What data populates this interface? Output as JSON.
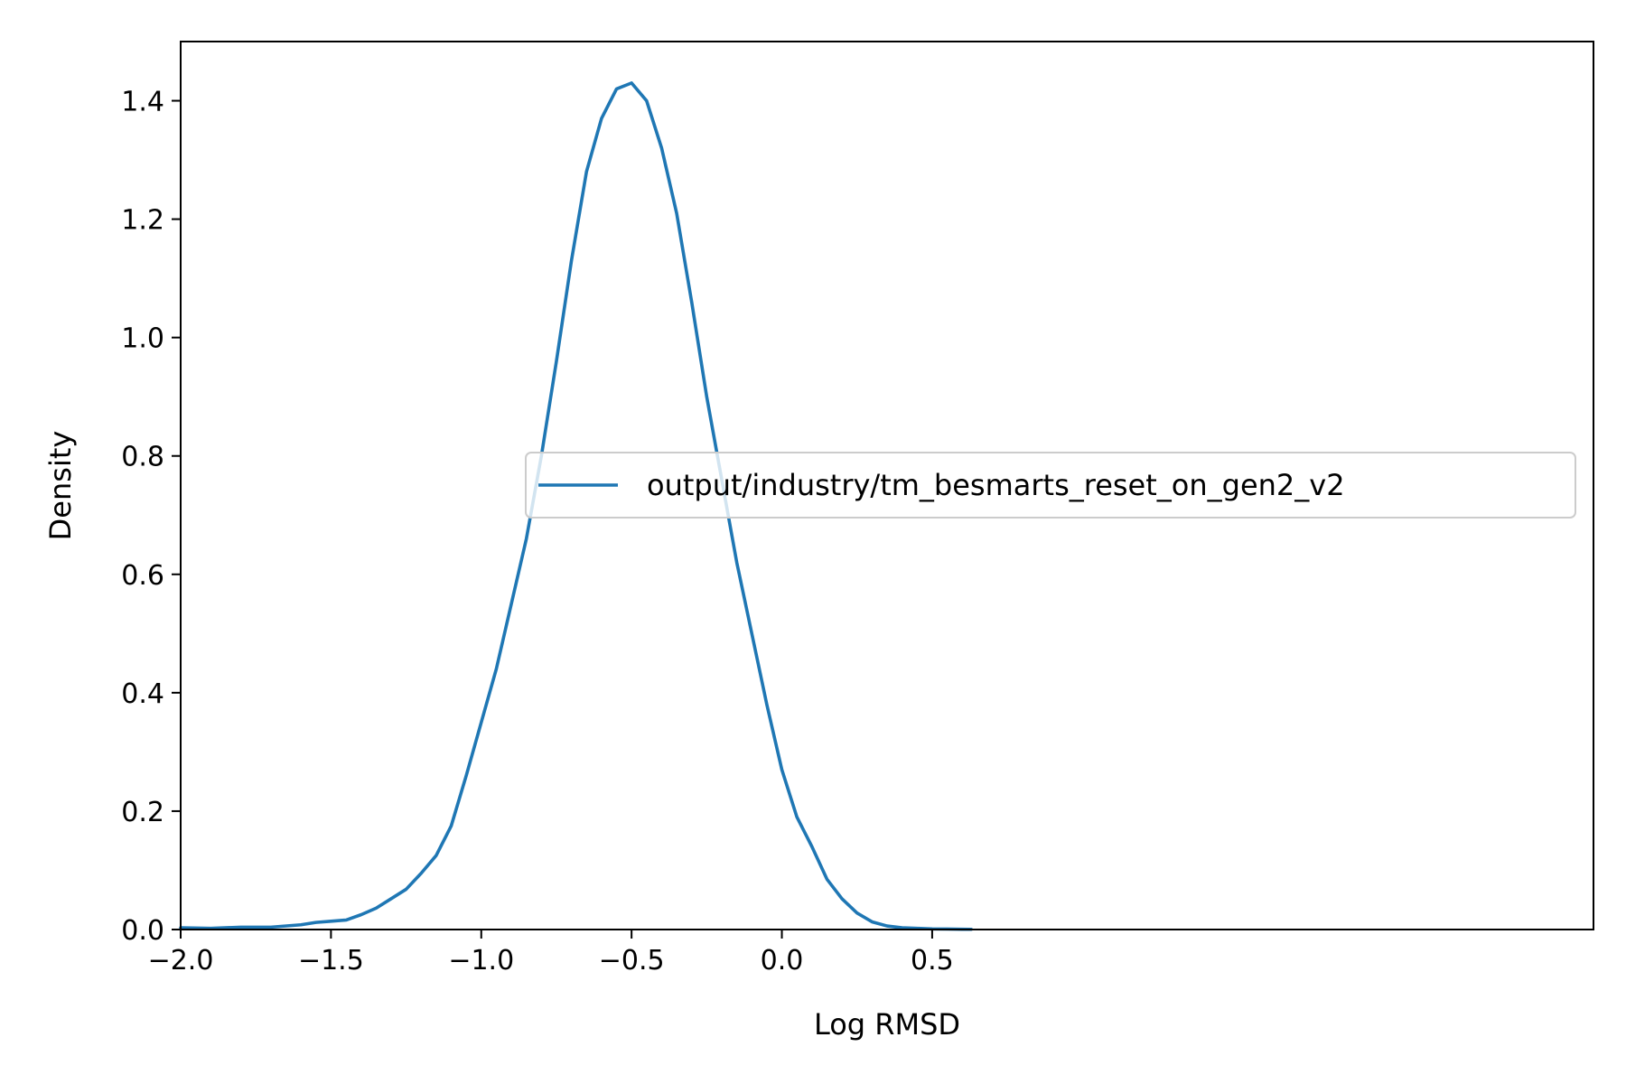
{
  "chart_data": {
    "type": "line",
    "title": "",
    "xlabel": "Log RMSD",
    "ylabel": "Density",
    "xlim": [
      -2.0,
      2.7
    ],
    "ylim": [
      0.0,
      1.5
    ],
    "xticks": [
      -2.0,
      -1.5,
      -1.0,
      -0.5,
      0.0,
      0.5
    ],
    "xtick_labels": [
      "−2.0",
      "−1.5",
      "−1.0",
      "−0.5",
      "0.0",
      "0.5"
    ],
    "yticks": [
      0.0,
      0.2,
      0.4,
      0.6,
      0.8,
      1.0,
      1.2,
      1.4
    ],
    "ytick_labels": [
      "0.0",
      "0.2",
      "0.4",
      "0.6",
      "0.8",
      "1.0",
      "1.2",
      "1.4"
    ],
    "grid": false,
    "legend_position": "center-right",
    "series": [
      {
        "name": "output/industry/tm_besmarts_reset_on_gen2_v2",
        "color": "#1f77b4",
        "x": [
          -2.0,
          -1.9,
          -1.8,
          -1.7,
          -1.6,
          -1.55,
          -1.5,
          -1.45,
          -1.4,
          -1.35,
          -1.3,
          -1.25,
          -1.2,
          -1.15,
          -1.1,
          -1.05,
          -1.0,
          -0.95,
          -0.9,
          -0.85,
          -0.8,
          -0.75,
          -0.7,
          -0.65,
          -0.6,
          -0.55,
          -0.5,
          -0.45,
          -0.4,
          -0.35,
          -0.3,
          -0.25,
          -0.2,
          -0.15,
          -0.1,
          -0.05,
          0.0,
          0.05,
          0.1,
          0.15,
          0.2,
          0.25,
          0.3,
          0.35,
          0.4,
          0.45,
          0.5,
          0.55,
          0.6,
          0.63
        ],
        "y": [
          0.003,
          0.002,
          0.004,
          0.004,
          0.008,
          0.012,
          0.014,
          0.016,
          0.025,
          0.036,
          0.052,
          0.068,
          0.095,
          0.125,
          0.175,
          0.26,
          0.35,
          0.44,
          0.55,
          0.66,
          0.8,
          0.96,
          1.13,
          1.28,
          1.37,
          1.42,
          1.43,
          1.4,
          1.32,
          1.21,
          1.06,
          0.9,
          0.76,
          0.62,
          0.5,
          0.38,
          0.27,
          0.19,
          0.14,
          0.085,
          0.052,
          0.028,
          0.013,
          0.006,
          0.003,
          0.002,
          0.001,
          0.0008,
          0.0005,
          0.0004
        ]
      }
    ]
  }
}
